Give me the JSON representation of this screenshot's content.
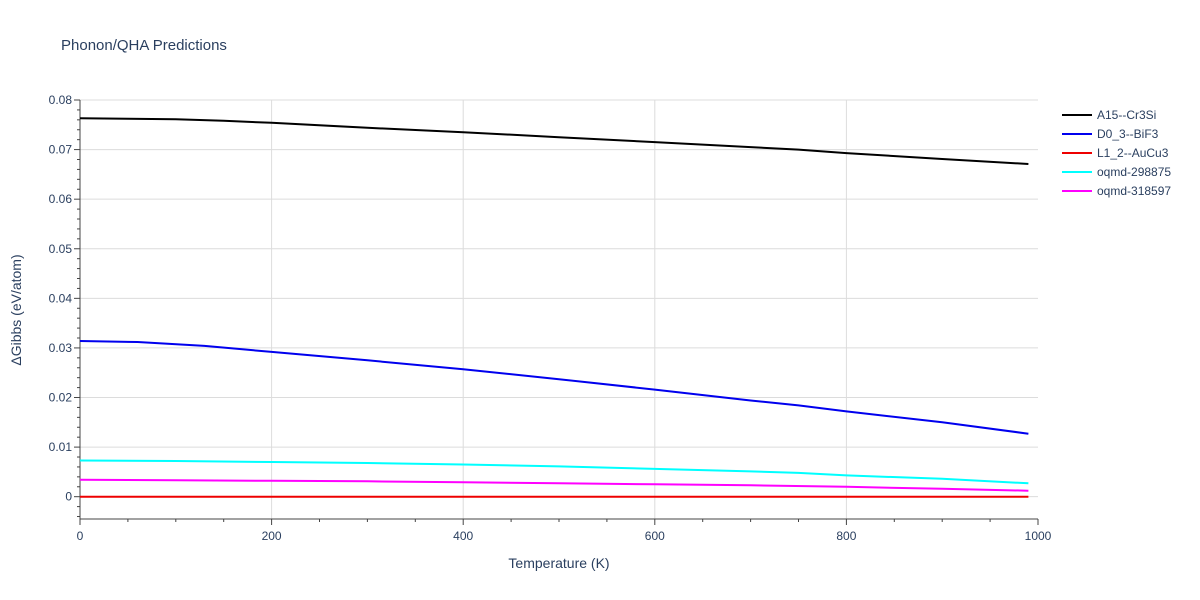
{
  "chart_data": {
    "type": "line",
    "title": "Phonon/QHA Predictions",
    "xlabel": "Temperature (K)",
    "ylabel": "ΔGibbs (eV/atom)",
    "xlim": [
      0,
      1000
    ],
    "ylim": [
      -0.0045,
      0.08
    ],
    "xticks": [
      0,
      200,
      400,
      600,
      800,
      1000
    ],
    "xtick_labels": [
      "0",
      "200",
      "400",
      "600",
      "800",
      "1000"
    ],
    "yticks": [
      0,
      0.01,
      0.02,
      0.03,
      0.04,
      0.05,
      0.06,
      0.07,
      0.08
    ],
    "ytick_labels": [
      "0",
      "0.01",
      "0.02",
      "0.03",
      "0.04",
      "0.05",
      "0.06",
      "0.07",
      "0.08"
    ],
    "grid": true,
    "legend_position": "top-right",
    "series": [
      {
        "name": "A15--Cr3Si",
        "color": "#000000",
        "x": [
          0,
          50,
          100,
          150,
          200,
          300,
          400,
          500,
          600,
          700,
          750,
          800,
          900,
          990
        ],
        "y": [
          0.0763,
          0.0762,
          0.0761,
          0.0758,
          0.0754,
          0.0744,
          0.0735,
          0.0725,
          0.0715,
          0.0705,
          0.07,
          0.0693,
          0.0681,
          0.0671
        ]
      },
      {
        "name": "D0_3--BiF3",
        "color": "#0000ee",
        "x": [
          0,
          60,
          130,
          200,
          300,
          400,
          500,
          600,
          700,
          750,
          800,
          900,
          990
        ],
        "y": [
          0.0314,
          0.0312,
          0.0304,
          0.0292,
          0.0275,
          0.0257,
          0.0237,
          0.0216,
          0.0194,
          0.0184,
          0.0172,
          0.015,
          0.0127
        ]
      },
      {
        "name": "L1_2--AuCu3",
        "color": "#ee0000",
        "x": [
          0,
          200,
          400,
          600,
          800,
          990
        ],
        "y": [
          0.0,
          0.0,
          0.0,
          0.0,
          0.0,
          0.0
        ]
      },
      {
        "name": "oqmd-298875",
        "color": "#00ffff",
        "x": [
          0,
          100,
          200,
          300,
          400,
          500,
          600,
          700,
          750,
          800,
          900,
          990
        ],
        "y": [
          0.0073,
          0.0072,
          0.007,
          0.0068,
          0.0065,
          0.0061,
          0.0056,
          0.0051,
          0.0048,
          0.0043,
          0.0036,
          0.0027
        ]
      },
      {
        "name": "oqmd-318597",
        "color": "#ff00ff",
        "x": [
          0,
          100,
          200,
          300,
          400,
          500,
          600,
          700,
          800,
          900,
          990
        ],
        "y": [
          0.0034,
          0.0033,
          0.0032,
          0.0031,
          0.0029,
          0.0027,
          0.0025,
          0.0023,
          0.002,
          0.0016,
          0.0012
        ]
      }
    ]
  }
}
